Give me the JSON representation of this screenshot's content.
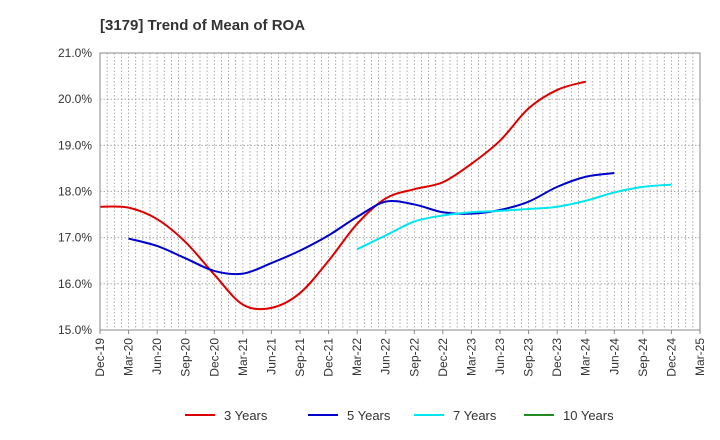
{
  "chart_data": {
    "type": "line",
    "title": "[3179]  Trend of Mean of ROA",
    "xlabel": "",
    "ylabel": "",
    "ylim": [
      15.0,
      21.0
    ],
    "y_ticks": [
      "15.0%",
      "16.0%",
      "17.0%",
      "18.0%",
      "19.0%",
      "20.0%",
      "21.0%"
    ],
    "x_tick_labels": [
      "Dec-19",
      "Mar-20",
      "Jun-20",
      "Sep-20",
      "Dec-20",
      "Mar-21",
      "Jun-21",
      "Sep-21",
      "Dec-21",
      "Mar-22",
      "Jun-22",
      "Sep-22",
      "Dec-22",
      "Mar-23",
      "Jun-23",
      "Sep-23",
      "Dec-23",
      "Mar-24",
      "Jun-24",
      "Sep-24",
      "Dec-24",
      "Mar-25"
    ],
    "grid": true,
    "legend_position": "bottom",
    "series": [
      {
        "name": "3 Years",
        "color": "#dd0000",
        "start_index": 0,
        "values": [
          17.67,
          17.65,
          17.4,
          16.9,
          16.2,
          15.55,
          15.48,
          15.8,
          16.5,
          17.3,
          17.85,
          18.05,
          18.2,
          18.6,
          19.1,
          19.8,
          20.2,
          20.38
        ]
      },
      {
        "name": "5 Years",
        "color": "#0000cc",
        "start_index": 1,
        "values": [
          16.98,
          16.82,
          16.55,
          16.28,
          16.22,
          16.45,
          16.72,
          17.05,
          17.45,
          17.78,
          17.72,
          17.55,
          17.52,
          17.6,
          17.78,
          18.1,
          18.32,
          18.4
        ]
      },
      {
        "name": "7 Years",
        "color": "#00e5ee",
        "start_index": 9,
        "values": [
          16.75,
          17.05,
          17.35,
          17.48,
          17.55,
          17.58,
          17.62,
          17.67,
          17.8,
          17.98,
          18.1,
          18.15
        ]
      },
      {
        "name": "10 Years",
        "color": "#228b22",
        "start_index": 0,
        "values": []
      }
    ]
  }
}
